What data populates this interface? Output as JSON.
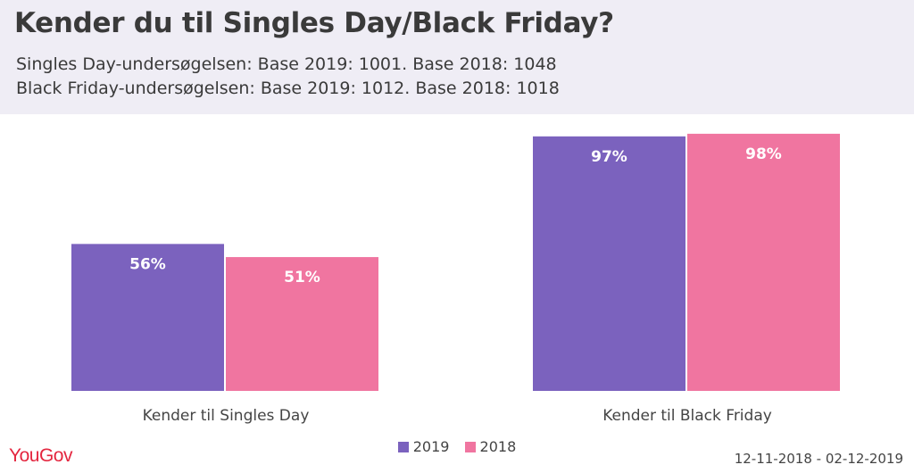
{
  "header": {
    "title": "Kender du til Singles Day/Black Friday?",
    "subtitle_1": "Singles Day-undersøgelsen: Base 2019: 1001. Base 2018: 1048",
    "subtitle_2": "Black Friday-undersøgelsen: Base 2019: 1012. Base 2018: 1018"
  },
  "footer": {
    "logo": "YouGov",
    "date_range": "12-11-2018 - 02-12-2019"
  },
  "colors": {
    "series_2019": "#7b62be",
    "series_2018": "#f075a0",
    "header_bg": "#efedf5",
    "logo": "#e4263f"
  },
  "chart_data": {
    "type": "bar",
    "categories": [
      "Kender til Singles Day",
      "Kender til Black Friday"
    ],
    "series": [
      {
        "name": "2019",
        "values": [
          56,
          97
        ],
        "labels": [
          "56%",
          "97%"
        ],
        "color": "#7b62be"
      },
      {
        "name": "2018",
        "values": [
          51,
          98
        ],
        "labels": [
          "51%",
          "98%"
        ],
        "color": "#f075a0"
      }
    ],
    "ylim": [
      0,
      100
    ],
    "grid": false,
    "legend_position": "bottom-center"
  }
}
